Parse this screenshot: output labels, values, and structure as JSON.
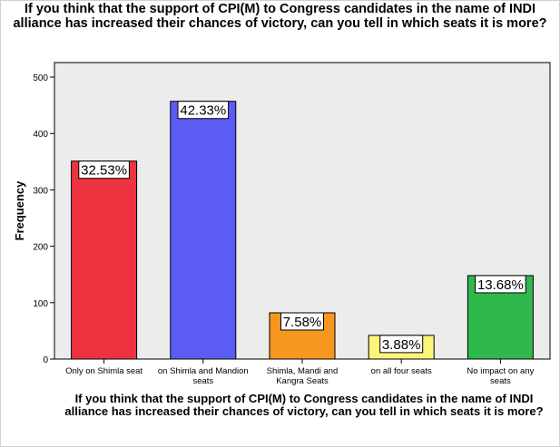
{
  "chart_data": {
    "type": "bar",
    "title": "If you think that the support of CPI(M) to Congress candidates in the name of INDI alliance has increased their chances of victory, can you tell in which seats it is more?",
    "xlabel": "If you think that the support of CPI(M) to Congress candidates in the name of INDI alliance has increased their chances of victory, can you tell in which seats it is more?",
    "ylabel": "Frequency",
    "ylim": [
      0,
      500
    ],
    "yticks": [
      "0",
      "100",
      "200",
      "300",
      "400",
      "500"
    ],
    "categories": [
      "Only on Shimla seat",
      "on Shimla and Mandion seats",
      "Shimla, Mandi and Kangra Seats",
      "on all four seats",
      "No impact on any seats"
    ],
    "category_lines": [
      [
        "Only on Shimla seat"
      ],
      [
        "on Shimla and Mandion",
        "seats"
      ],
      [
        "Shimla, Mandi and",
        "Kangra Seats"
      ],
      [
        "on all four seats"
      ],
      [
        "No impact on any",
        "seats"
      ]
    ],
    "values": [
      351,
      457,
      82,
      42,
      148
    ],
    "data_labels": [
      "32.53%",
      "42.33%",
      "7.58%",
      "3.88%",
      "13.68%"
    ],
    "colors": [
      "#ee3340",
      "#5b5bf5",
      "#f7971e",
      "#fbf57a",
      "#2fb84b"
    ],
    "plot_background": "#ececec",
    "grid": false,
    "legend": "none"
  }
}
